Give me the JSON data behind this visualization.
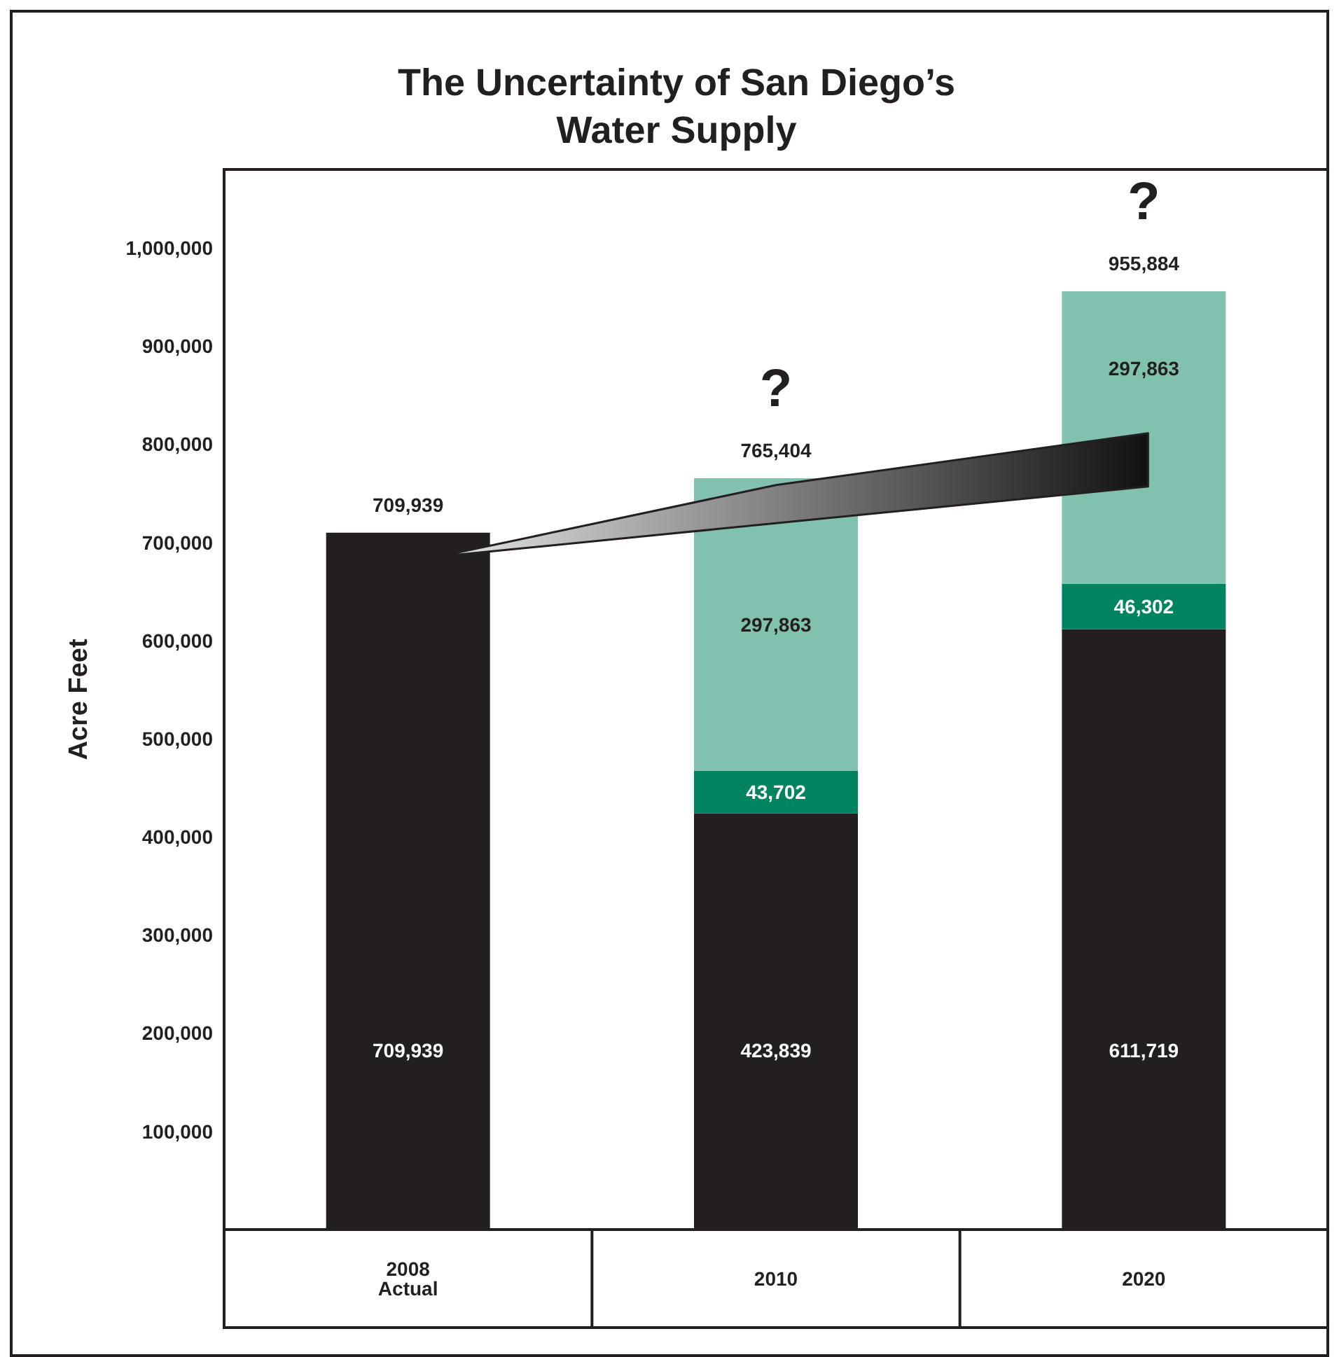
{
  "chart_data": {
    "type": "bar",
    "title": "The Uncertainty of San Diego’s\nWater Supply",
    "ylabel": "Acre Feet",
    "categories": [
      "2008\nActual",
      "2010",
      "2020"
    ],
    "stacked": true,
    "series": [
      {
        "color": "#231f20",
        "values": [
          709939,
          423839,
          611719
        ],
        "value_labels": [
          "709,939",
          "423,839",
          "611,719"
        ]
      },
      {
        "color": "#00845f",
        "values": [
          null,
          43702,
          46302
        ],
        "value_labels": [
          null,
          "43,702",
          "46,302"
        ]
      },
      {
        "color": "#80c1b0",
        "values": [
          null,
          297863,
          297863
        ],
        "value_labels": [
          null,
          "297,863",
          "297,863"
        ]
      }
    ],
    "ylim": [
      0,
      1080000
    ],
    "yticks": [
      {
        "value": 100000,
        "label": "100,000"
      },
      {
        "value": 200000,
        "label": "200,000"
      },
      {
        "value": 300000,
        "label": "300,000"
      },
      {
        "value": 400000,
        "label": "400,000"
      },
      {
        "value": 500000,
        "label": "500,000"
      },
      {
        "value": 600000,
        "label": "600,000"
      },
      {
        "value": 700000,
        "label": "700,000"
      },
      {
        "value": 800000,
        "label": "800,000"
      },
      {
        "value": 900000,
        "label": "900,000"
      },
      {
        "value": 1000000,
        "label": "1,000,000"
      }
    ],
    "totals": [
      "709,939",
      "765,404",
      "955,884"
    ],
    "grid": false,
    "annotations": [
      "?",
      "?"
    ]
  }
}
